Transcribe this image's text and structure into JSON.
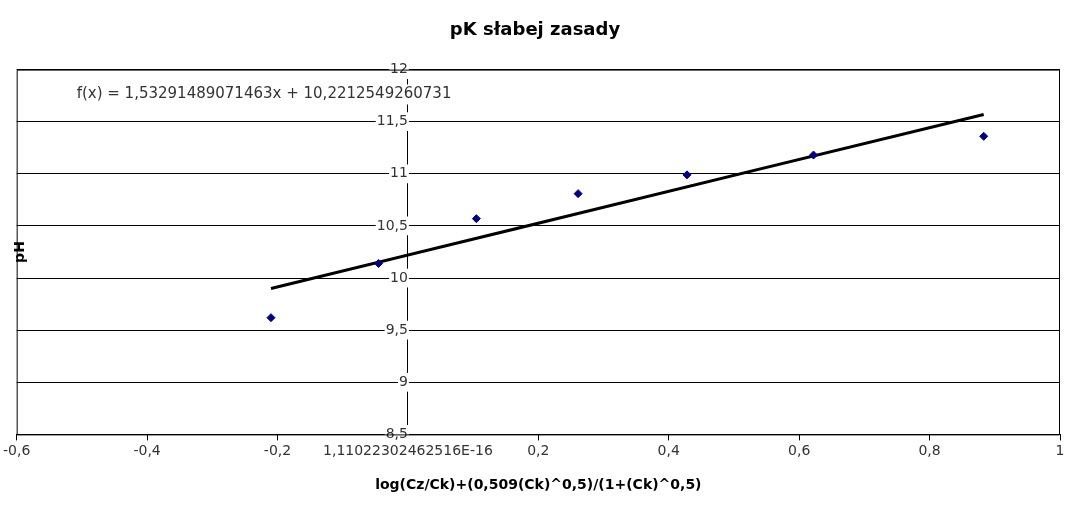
{
  "chart_data": {
    "type": "scatter",
    "title": "pK słabej zasady",
    "xlabel": "log(Cz/Ck)+(0,509(Ck)^0,5)/(1+(Ck)^0,5)",
    "ylabel": "pH",
    "series": [
      {
        "color": "#000080",
        "x": [
          -0.21,
          -0.045,
          0.105,
          0.261,
          0.428,
          0.622,
          0.883
        ],
        "values": [
          9.62,
          10.14,
          10.57,
          10.81,
          10.99,
          11.18,
          11.36
        ],
        "marker": "diamond"
      },
      {
        "type": "line",
        "color": "#000000",
        "x": [
          -0.21,
          0.883
        ],
        "values": [
          9.9,
          11.57
        ],
        "marker": "none",
        "line_style": "solid"
      }
    ],
    "xlim": [
      -0.6,
      1
    ],
    "xticks": [
      {
        "value": -0.6,
        "label": "-0,6"
      },
      {
        "value": -0.4,
        "label": "-0,4"
      },
      {
        "value": -0.2,
        "label": "-0,2"
      },
      {
        "value": 0,
        "label": "1,11022302462516E-16"
      },
      {
        "value": 0.2,
        "label": "0,2"
      },
      {
        "value": 0.4,
        "label": "0,4"
      },
      {
        "value": 0.6,
        "label": "0,6"
      },
      {
        "value": 0.8,
        "label": "0,8"
      },
      {
        "value": 1,
        "label": "1"
      }
    ],
    "ylim": [
      8.5,
      12
    ],
    "yticks": [
      {
        "value": 8.5,
        "label": "8,5"
      },
      {
        "value": 9,
        "label": "9"
      },
      {
        "value": 9.5,
        "label": "9,5"
      },
      {
        "value": 10,
        "label": "10"
      },
      {
        "value": 10.5,
        "label": "10,5"
      },
      {
        "value": 11,
        "label": "11"
      },
      {
        "value": 11.5,
        "label": "11,5"
      },
      {
        "value": 12,
        "label": "12"
      }
    ],
    "grid": "y",
    "legend": false,
    "annotations": [
      "f(x) = 1,53291489071463x + 10,2212549260731"
    ]
  }
}
